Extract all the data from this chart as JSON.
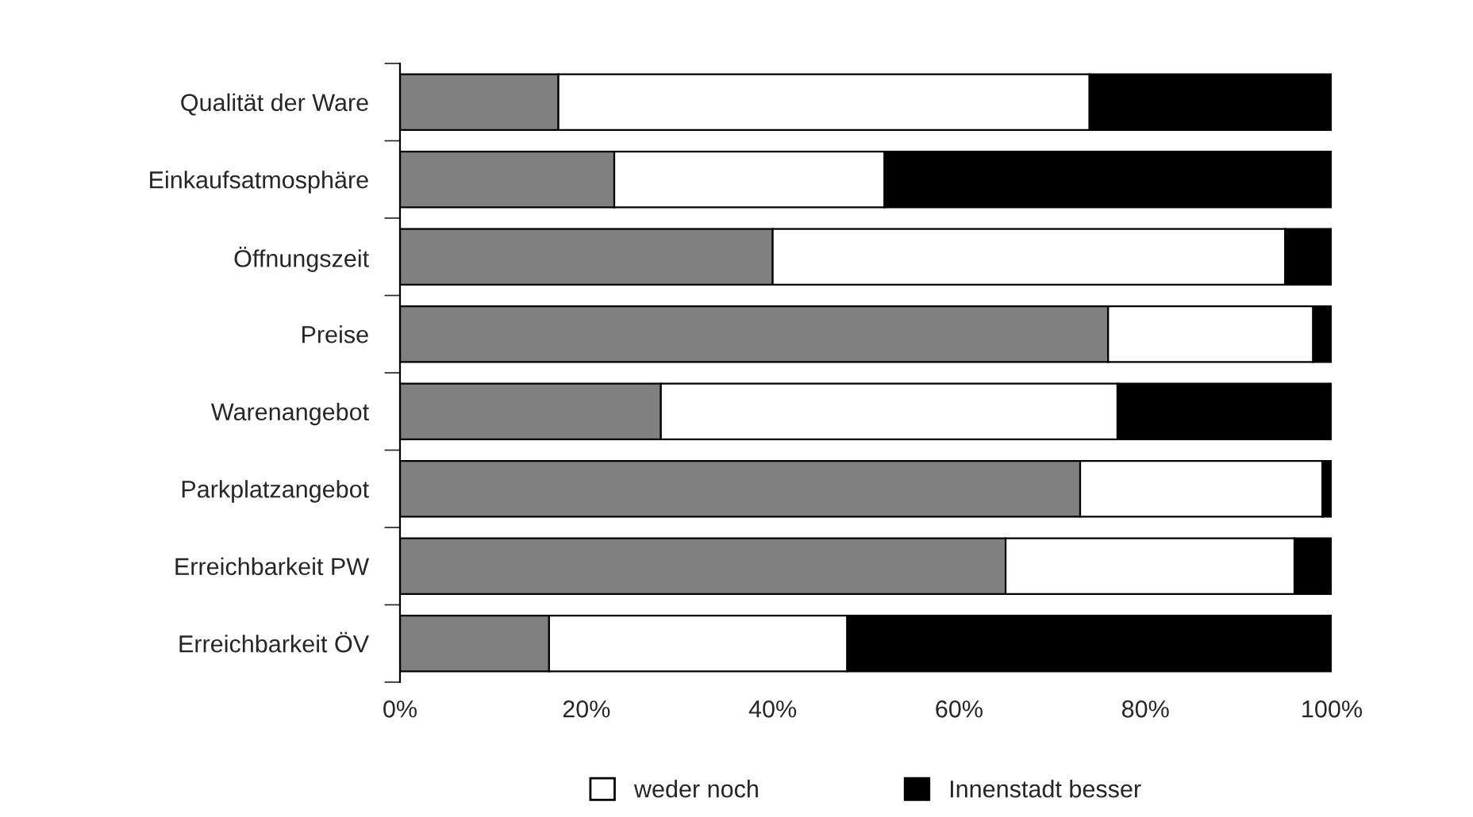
{
  "chart_data": {
    "type": "bar",
    "orientation": "horizontal",
    "stacked": true,
    "categories": [
      "Qualität der Ware",
      "Einkaufsatmosphäre",
      "Öffnungszeit",
      "Preise",
      "Warenangebot",
      "Parkplatzangebot",
      "Erreichbarkeit PW",
      "Erreichbarkeit ÖV"
    ],
    "series": [
      {
        "color": "#808080",
        "values": [
          17,
          23,
          40,
          76,
          28,
          73,
          65,
          16
        ]
      },
      {
        "name": "weder noch",
        "color": "#ffffff",
        "values": [
          57,
          29,
          55,
          22,
          49,
          26,
          31,
          32
        ]
      },
      {
        "name": "Innenstadt besser",
        "color": "#000000",
        "values": [
          26,
          48,
          5,
          2,
          23,
          1,
          4,
          52
        ]
      }
    ],
    "xlim": [
      0,
      100
    ],
    "xticks": [
      {
        "value": 0,
        "label": "0%"
      },
      {
        "value": 20,
        "label": "20%"
      },
      {
        "value": 40,
        "label": "40%"
      },
      {
        "value": 60,
        "label": "60%"
      },
      {
        "value": 80,
        "label": "80%"
      },
      {
        "value": 100,
        "label": "100%"
      }
    ],
    "grid": false,
    "legend": "bottom"
  }
}
